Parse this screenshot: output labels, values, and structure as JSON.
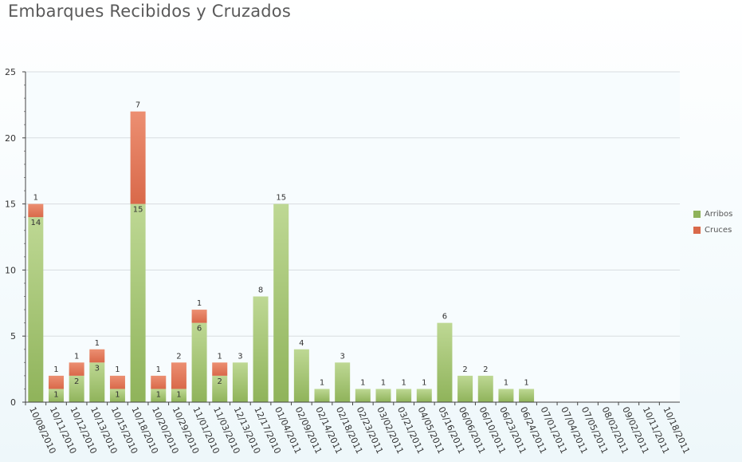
{
  "title": "Embarques Recibidos y Cruzados",
  "colors": {
    "arribos_top": "#bed894",
    "arribos_bottom": "#8fb35a",
    "cruces_top": "#ec8f72",
    "cruces_bottom": "#d9694a",
    "grid": "#d8dde0",
    "axis": "#444444",
    "label": "#333333"
  },
  "chart_data": {
    "type": "bar",
    "stacked": true,
    "title": "Embarques Recibidos y Cruzados",
    "xlabel": "",
    "ylabel": "",
    "ylim": [
      0,
      25
    ],
    "yticks": [
      0,
      5,
      10,
      15,
      20,
      25
    ],
    "grid": true,
    "legend_position": "right",
    "categories": [
      "10/08/2010",
      "10/11/2010",
      "10/12/2010",
      "10/13/2010",
      "10/15/2010",
      "10/18/2010",
      "10/20/2010",
      "10/29/2010",
      "11/01/2010",
      "11/03/2010",
      "12/13/2010",
      "12/17/2010",
      "01/04/2011",
      "02/09/2011",
      "02/14/2011",
      "02/18/2011",
      "02/23/2011",
      "03/02/2011",
      "03/21/2011",
      "04/05/2011",
      "05/16/2011",
      "06/06/2011",
      "06/10/2011",
      "06/23/2011",
      "06/24/2011",
      "07/01/2011",
      "07/04/2011",
      "07/05/2011",
      "08/02/2011",
      "09/02/2011",
      "10/11/2011",
      "10/18/2011"
    ],
    "series": [
      {
        "name": "Arribos",
        "values": [
          14,
          1,
          2,
          3,
          1,
          15,
          1,
          1,
          6,
          2,
          3,
          8,
          15,
          4,
          1,
          3,
          1,
          1,
          1,
          1,
          6,
          2,
          2,
          1,
          1,
          0,
          0,
          0,
          0,
          0,
          0,
          0
        ]
      },
      {
        "name": "Cruces",
        "values": [
          1,
          1,
          1,
          1,
          1,
          7,
          1,
          2,
          1,
          1,
          0,
          0,
          0,
          0,
          0,
          0,
          0,
          0,
          0,
          0,
          0,
          0,
          0,
          0,
          0,
          0,
          0,
          0,
          0,
          0,
          0,
          0
        ]
      }
    ]
  }
}
